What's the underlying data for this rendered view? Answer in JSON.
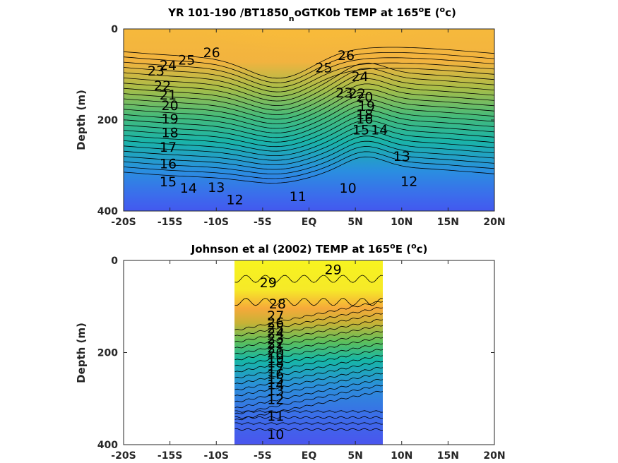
{
  "chart_data": [
    {
      "type": "contour",
      "title": "YR 101-190 /BT1850",
      "title_sub": "n",
      "title_rest": "oGTK0b TEMP at 165",
      "title_sup": "o",
      "title_tail": "E (",
      "title_unit_sup": "o",
      "title_end": "c)",
      "ylabel": "Depth (m)",
      "xlabel": "",
      "x_ticks": [
        "-20S",
        "-15S",
        "-10S",
        "-5S",
        "EQ",
        "5N",
        "10N",
        "15N",
        "20N"
      ],
      "y_ticks": [
        "0",
        "200",
        "400"
      ],
      "xlim": [
        -20,
        20
      ],
      "ylim": [
        0,
        400
      ],
      "contour_labels": [
        {
          "text": "26",
          "x": -10.5,
          "y": 62
        },
        {
          "text": "25",
          "x": -13.2,
          "y": 78
        },
        {
          "text": "24",
          "x": -15.2,
          "y": 90
        },
        {
          "text": "23",
          "x": -16.5,
          "y": 102
        },
        {
          "text": "22",
          "x": -15.8,
          "y": 135
        },
        {
          "text": "21",
          "x": -15.2,
          "y": 155
        },
        {
          "text": "20",
          "x": -15.0,
          "y": 178
        },
        {
          "text": "19",
          "x": -15.0,
          "y": 208
        },
        {
          "text": "18",
          "x": -15.0,
          "y": 238
        },
        {
          "text": "17",
          "x": -15.2,
          "y": 270
        },
        {
          "text": "16",
          "x": -15.2,
          "y": 306
        },
        {
          "text": "15",
          "x": -15.2,
          "y": 346
        },
        {
          "text": "14",
          "x": -13.0,
          "y": 360
        },
        {
          "text": "13",
          "x": -10.0,
          "y": 358
        },
        {
          "text": "12",
          "x": -8.0,
          "y": 385
        },
        {
          "text": "11",
          "x": -1.2,
          "y": 378
        },
        {
          "text": "10",
          "x": 4.2,
          "y": 360
        },
        {
          "text": "26",
          "x": 4.0,
          "y": 68
        },
        {
          "text": "25",
          "x": 1.6,
          "y": 95
        },
        {
          "text": "24",
          "x": 5.5,
          "y": 115
        },
        {
          "text": "23",
          "x": 3.8,
          "y": 150
        },
        {
          "text": "22",
          "x": 5.2,
          "y": 152
        },
        {
          "text": "20",
          "x": 6.0,
          "y": 160
        },
        {
          "text": "19",
          "x": 6.2,
          "y": 180
        },
        {
          "text": "18",
          "x": 6.0,
          "y": 198
        },
        {
          "text": "16",
          "x": 6.0,
          "y": 208
        },
        {
          "text": "15",
          "x": 5.6,
          "y": 232
        },
        {
          "text": "14",
          "x": 7.6,
          "y": 232
        },
        {
          "text": "13",
          "x": 10.0,
          "y": 290
        },
        {
          "text": "12",
          "x": 10.8,
          "y": 345
        }
      ]
    },
    {
      "type": "contour",
      "title": "Johnson et al (2002) TEMP at 165",
      "title_sup": "o",
      "title_tail": "E (",
      "title_unit_sup": "o",
      "title_end": "c)",
      "ylabel": "Depth (m)",
      "xlabel": "",
      "x_ticks": [
        "-20S",
        "-15S",
        "-10S",
        "-5S",
        "EQ",
        "5N",
        "10N",
        "15N",
        "20N"
      ],
      "y_ticks": [
        "0",
        "200",
        "400"
      ],
      "xlim": [
        -20,
        20
      ],
      "ylim": [
        0,
        400
      ],
      "data_extent_x": [
        -8,
        8
      ],
      "contour_labels": [
        {
          "text": "29",
          "x": -4.4,
          "y": 58
        },
        {
          "text": "29",
          "x": 2.6,
          "y": 30
        },
        {
          "text": "28",
          "x": -3.4,
          "y": 104
        },
        {
          "text": "27",
          "x": -3.6,
          "y": 130
        },
        {
          "text": "26",
          "x": -3.6,
          "y": 145
        },
        {
          "text": "25",
          "x": -3.6,
          "y": 157
        },
        {
          "text": "24",
          "x": -3.6,
          "y": 168
        },
        {
          "text": "23",
          "x": -3.6,
          "y": 179
        },
        {
          "text": "22",
          "x": -3.6,
          "y": 190
        },
        {
          "text": "21",
          "x": -3.6,
          "y": 200
        },
        {
          "text": "20",
          "x": -3.6,
          "y": 211
        },
        {
          "text": "19",
          "x": -3.6,
          "y": 222
        },
        {
          "text": "18",
          "x": -3.6,
          "y": 232
        },
        {
          "text": "17",
          "x": -3.6,
          "y": 245
        },
        {
          "text": "16",
          "x": -3.6,
          "y": 257
        },
        {
          "text": "15",
          "x": -3.6,
          "y": 268
        },
        {
          "text": "14",
          "x": -3.6,
          "y": 280
        },
        {
          "text": "13",
          "x": -3.6,
          "y": 293
        },
        {
          "text": "12",
          "x": -3.6,
          "y": 312
        },
        {
          "text": "11",
          "x": -3.6,
          "y": 348
        },
        {
          "text": "10",
          "x": -3.6,
          "y": 388
        }
      ]
    }
  ]
}
